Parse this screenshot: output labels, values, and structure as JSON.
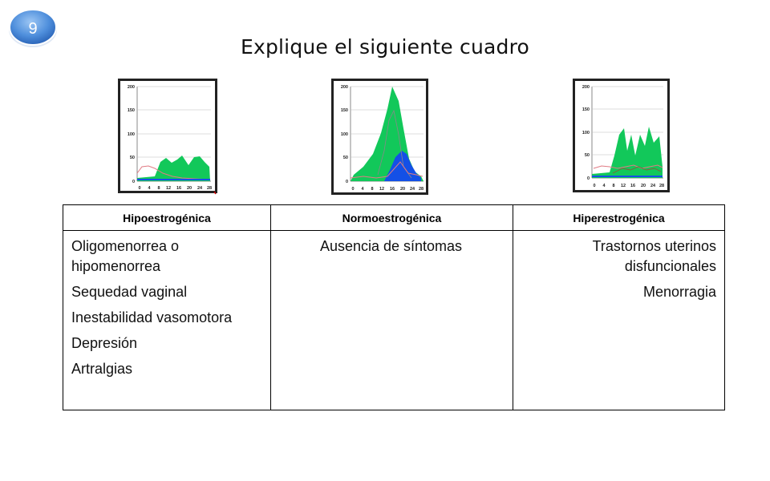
{
  "slide_number": "9",
  "title": "Explique el siguiente cuadro",
  "charts": [
    {
      "name": "hipo",
      "y_ticks": [
        "200",
        "150",
        "100",
        "50",
        "0"
      ],
      "x_ticks": [
        "0",
        "4",
        "8",
        "12",
        "16",
        "20",
        "24",
        "28"
      ]
    },
    {
      "name": "normo",
      "y_ticks": [
        "200",
        "150",
        "100",
        "50",
        "0"
      ],
      "x_ticks": [
        "0",
        "4",
        "8",
        "12",
        "16",
        "20",
        "24",
        "28"
      ]
    },
    {
      "name": "hiper",
      "y_ticks": [
        "200",
        "150",
        "100",
        "50",
        "0"
      ],
      "x_ticks": [
        "0",
        "4",
        "8",
        "12",
        "16",
        "20",
        "24",
        "28"
      ]
    }
  ],
  "table": {
    "headers": [
      "Hipoestrogénica",
      "Normoestrogénica",
      "Hiperestrogénica"
    ],
    "columns": [
      [
        "Oligomenorrea o hipomenorrea",
        "Sequedad vaginal",
        "Inestabilidad vasomotora",
        "Depresión",
        "Artralgias"
      ],
      [
        "Ausencia de síntomas"
      ],
      [
        "Trastornos uterinos disfuncionales",
        "Menorragia"
      ]
    ]
  },
  "colors": {
    "green": "#12c85a",
    "blue": "#1450e6",
    "badge": "#4a8ee0"
  }
}
